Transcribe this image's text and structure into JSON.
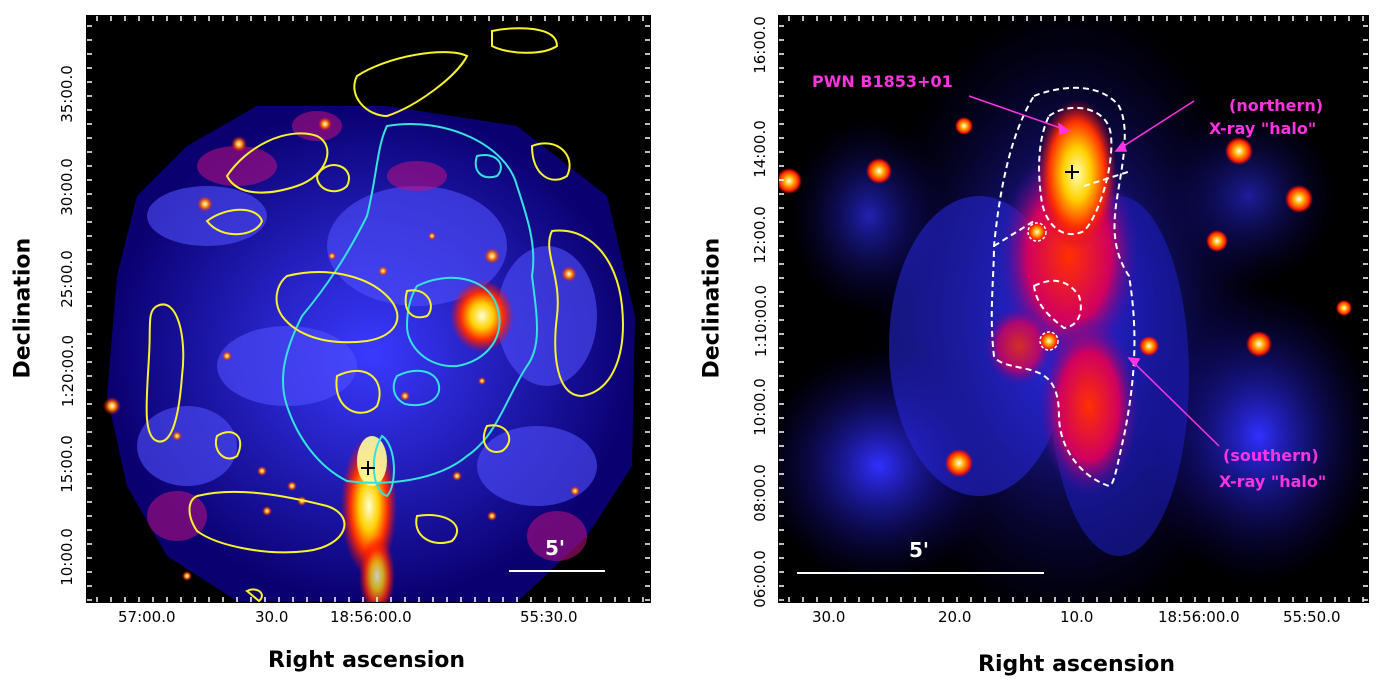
{
  "left_panel": {
    "scale_label": "5'",
    "x_ticks": [
      "57:00.0",
      "30.0",
      "18:56:00.0",
      "55:30.0"
    ],
    "y_ticks": [
      "35:00.0",
      "30:00.0",
      "25:00.0",
      "1:20:00.0",
      "15:00.0",
      "10:00.0"
    ],
    "x_title": "Right ascension",
    "y_title": "Declination",
    "contour_colors": {
      "radio": "#f7f22a",
      "xray": "#35e2e0"
    }
  },
  "right_panel": {
    "scale_label": "5'",
    "x_ticks": [
      "30.0",
      "20.0",
      "10.0",
      "18:56:00.0",
      "55:50.0"
    ],
    "y_ticks": [
      "16:00.0",
      "14:00.0",
      "12:00.0",
      "1:10:00.0",
      "10:00.0",
      "08:00.0",
      "06:00.0"
    ],
    "x_title": "Right ascension",
    "y_title": "Declination",
    "annotations": {
      "pwn": "PWN B1853+01",
      "north_1": "(northern)",
      "north_2": "X-ray \"halo\"",
      "south_1": "(southern)",
      "south_2": "X-ray \"halo\""
    },
    "annotation_color": "#ff33e0"
  }
}
